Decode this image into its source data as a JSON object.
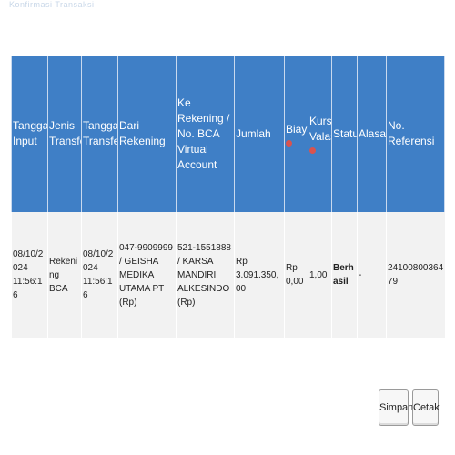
{
  "page": {
    "top_caption": "Konfirmasi Transaksi"
  },
  "table": {
    "headers": {
      "tanggal_input": "Tanggal Input",
      "jenis_transfer": "Jenis Transfer",
      "tanggal_transfer": "Tanggal Transfer",
      "dari_rekening": "Dari Rekening",
      "ke_rekening": "Ke Rekening / No. BCA Virtual Account",
      "jumlah": "Jumlah",
      "biaya": "Biaya",
      "kurs_valas": "Kurs Valas",
      "status": "Status",
      "alasan": "Alasan",
      "no_referensi": "No. Referensi"
    },
    "row": {
      "tanggal_input": "08/10/2024 11:56:16",
      "jenis_transfer": "Rekening BCA",
      "tanggal_transfer": "08/10/2024 11:56:16",
      "dari_rekening": "047-9909999 / GEISHA MEDIKA UTAMA PT (Rp)",
      "ke_rekening": "521-1551888 / KARSA MANDIRI ALKESINDO (Rp)",
      "jumlah": "Rp 3.091.350,00",
      "biaya": "Rp 0,00",
      "kurs_valas": "1,00",
      "status": "Berhasil",
      "alasan": "-",
      "no_referensi": "2410080036479"
    }
  },
  "buttons": {
    "save": "Simpan",
    "print": "Cetak"
  },
  "colors": {
    "header_bg": "#3f7fc6",
    "row_bg": "#f2f2f2",
    "status_success": "#d43a2a",
    "required_marker": "#d9534f"
  }
}
